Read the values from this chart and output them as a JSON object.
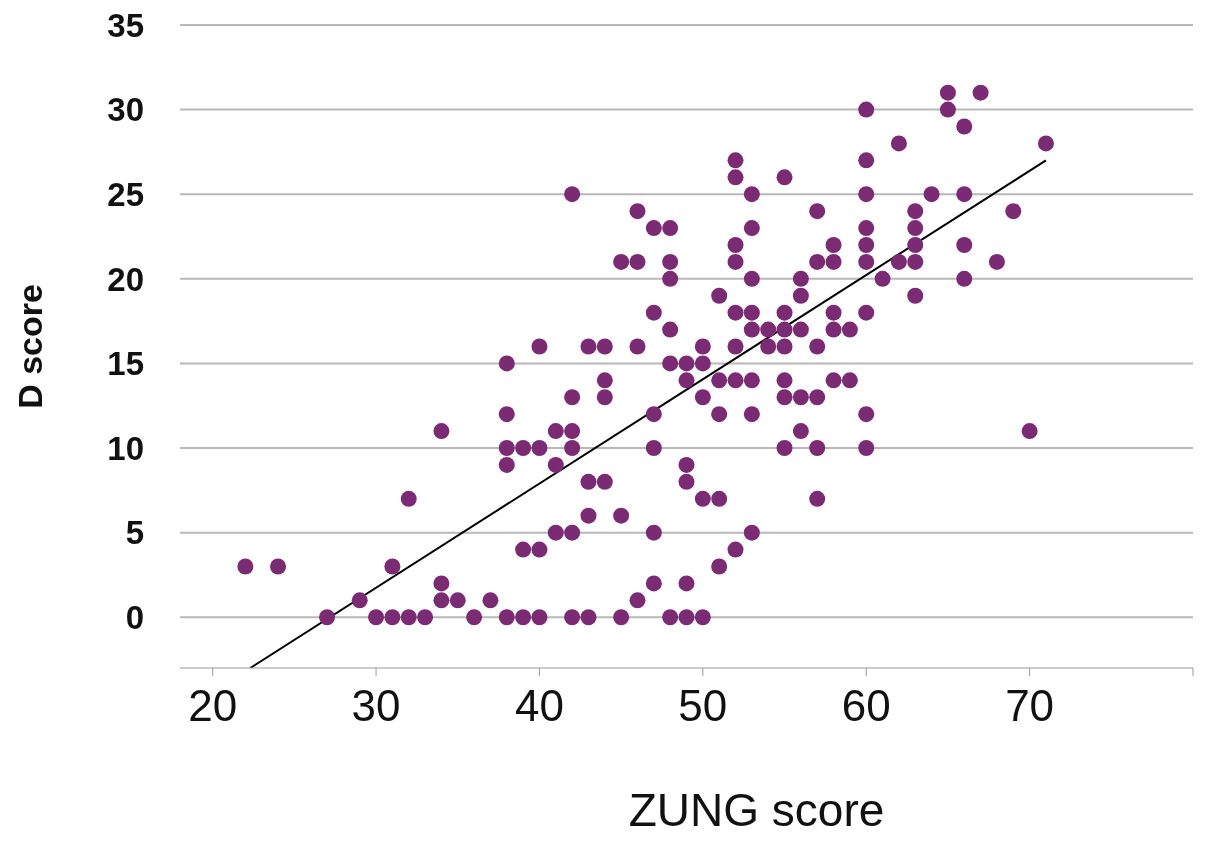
{
  "chart_data": {
    "type": "scatter",
    "xlabel": "ZUNG score",
    "ylabel": "D score",
    "xlim": [
      18,
      80
    ],
    "xticks": [
      20,
      30,
      40,
      50,
      60,
      70,
      {
        "value": 80,
        "label": null
      }
    ],
    "ylim": [
      -3,
      35
    ],
    "yticks": [
      0,
      5,
      10,
      15,
      20,
      25,
      30,
      35
    ],
    "grid": "y",
    "series": [
      {
        "marker": "circle",
        "color": "#7b2a74",
        "x": [
          22,
          24,
          27,
          29,
          30,
          31,
          31,
          32,
          32,
          33,
          34,
          34,
          34,
          35,
          36,
          37,
          38,
          38,
          38,
          38,
          38,
          39,
          39,
          39,
          40,
          40,
          40,
          40,
          41,
          41,
          41,
          42,
          42,
          42,
          42,
          42,
          42,
          43,
          43,
          43,
          43,
          44,
          44,
          44,
          44,
          45,
          45,
          45,
          46,
          46,
          46,
          46,
          47,
          47,
          47,
          47,
          47,
          47,
          48,
          48,
          48,
          48,
          48,
          48,
          49,
          49,
          49,
          49,
          49,
          49,
          50,
          50,
          50,
          50,
          50,
          51,
          51,
          51,
          51,
          51,
          52,
          52,
          52,
          52,
          52,
          52,
          52,
          52,
          53,
          53,
          53,
          53,
          53,
          53,
          53,
          53,
          54,
          54,
          55,
          55,
          55,
          55,
          55,
          55,
          55,
          56,
          56,
          56,
          56,
          56,
          57,
          57,
          57,
          57,
          57,
          57,
          58,
          58,
          58,
          58,
          58,
          59,
          59,
          60,
          60,
          60,
          60,
          60,
          60,
          60,
          60,
          60,
          61,
          62,
          62,
          63,
          63,
          63,
          63,
          63,
          64,
          65,
          65,
          66,
          66,
          66,
          66,
          67,
          68,
          69,
          70,
          71
        ],
        "values": [
          3,
          3,
          0,
          1,
          0,
          0,
          3,
          0,
          7,
          0,
          11,
          2,
          1,
          1,
          0,
          1,
          15,
          12,
          10,
          9,
          0,
          10,
          4,
          0,
          16,
          10,
          4,
          0,
          11,
          9,
          5,
          25,
          13,
          11,
          10,
          5,
          0,
          16,
          8,
          6,
          0,
          16,
          14,
          13,
          8,
          21,
          6,
          0,
          24,
          21,
          16,
          1,
          23,
          18,
          12,
          10,
          5,
          2,
          23,
          21,
          20,
          17,
          15,
          0,
          15,
          14,
          9,
          8,
          2,
          0,
          16,
          15,
          13,
          7,
          0,
          19,
          14,
          12,
          7,
          3,
          27,
          26,
          22,
          21,
          18,
          16,
          14,
          4,
          25,
          23,
          20,
          18,
          17,
          14,
          12,
          5,
          17,
          16,
          26,
          18,
          17,
          16,
          14,
          13,
          10,
          20,
          19,
          17,
          13,
          11,
          24,
          21,
          16,
          13,
          10,
          7,
          22,
          21,
          18,
          17,
          14,
          17,
          14,
          30,
          27,
          25,
          23,
          22,
          21,
          18,
          12,
          10,
          20,
          28,
          21,
          24,
          23,
          22,
          21,
          19,
          25,
          31,
          30,
          29,
          25,
          22,
          20,
          31,
          21,
          24,
          11,
          28
        ]
      },
      {
        "type": "line",
        "color": "#000000",
        "x": [
          22.3,
          71
        ],
        "values": [
          -3,
          27
        ]
      }
    ]
  }
}
